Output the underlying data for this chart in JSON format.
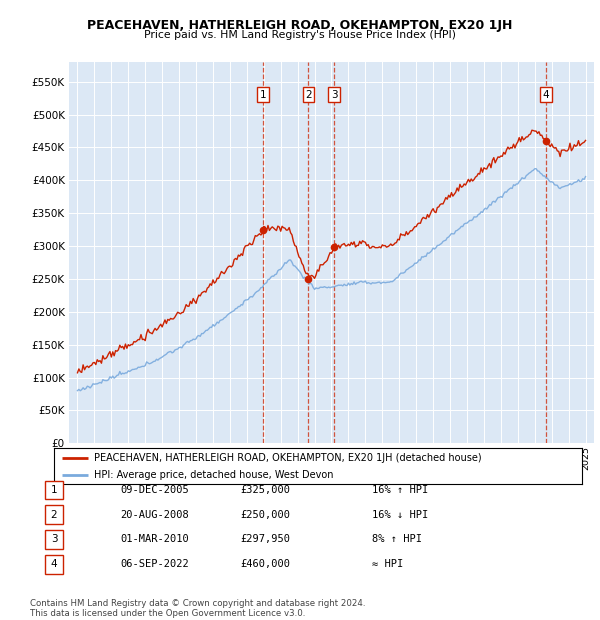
{
  "title": "PEACEHAVEN, HATHERLEIGH ROAD, OKEHAMPTON, EX20 1JH",
  "subtitle": "Price paid vs. HM Land Registry's House Price Index (HPI)",
  "legend_line1": "PEACEHAVEN, HATHERLEIGH ROAD, OKEHAMPTON, EX20 1JH (detached house)",
  "legend_line2": "HPI: Average price, detached house, West Devon",
  "footer1": "Contains HM Land Registry data © Crown copyright and database right 2024.",
  "footer2": "This data is licensed under the Open Government Licence v3.0.",
  "sale_dates_num": [
    2005.94,
    2008.64,
    2010.17,
    2022.68
  ],
  "sale_prices": [
    325000,
    250000,
    297950,
    460000
  ],
  "sale_labels": [
    "1",
    "2",
    "3",
    "4"
  ],
  "sale_table": [
    [
      "1",
      "09-DEC-2005",
      "£325,000",
      "16% ↑ HPI"
    ],
    [
      "2",
      "20-AUG-2008",
      "£250,000",
      "16% ↓ HPI"
    ],
    [
      "3",
      "01-MAR-2010",
      "£297,950",
      "8% ↑ HPI"
    ],
    [
      "4",
      "06-SEP-2022",
      "£460,000",
      "≈ HPI"
    ]
  ],
  "hpi_color": "#7aaadd",
  "price_color": "#cc2200",
  "plot_bg_color": "#dce8f5",
  "ylim": [
    0,
    580000
  ],
  "yticks": [
    0,
    50000,
    100000,
    150000,
    200000,
    250000,
    300000,
    350000,
    400000,
    450000,
    500000,
    550000
  ],
  "xlim_start": 1994.5,
  "xlim_end": 2025.5
}
